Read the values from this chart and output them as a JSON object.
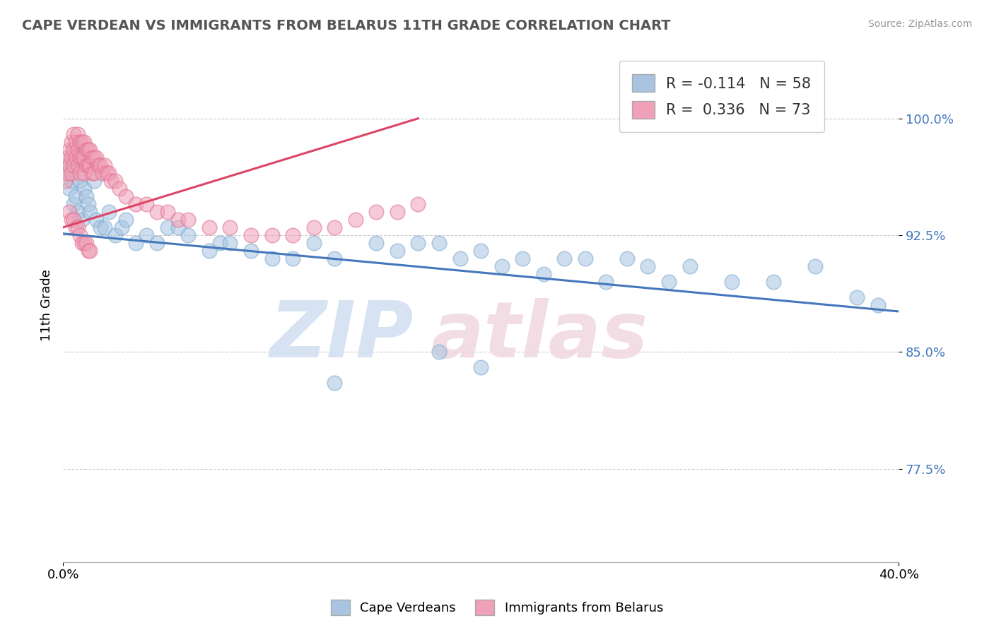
{
  "title": "CAPE VERDEAN VS IMMIGRANTS FROM BELARUS 11TH GRADE CORRELATION CHART",
  "source": "Source: ZipAtlas.com",
  "ylabel": "11th Grade",
  "yticks": [
    0.775,
    0.85,
    0.925,
    1.0
  ],
  "ytick_labels": [
    "77.5%",
    "85.0%",
    "92.5%",
    "100.0%"
  ],
  "xlim": [
    0.0,
    0.4
  ],
  "ylim": [
    0.715,
    1.045
  ],
  "legend_label_cape": "Cape Verdeans",
  "legend_label_belarus": "Immigrants from Belarus",
  "blue_color": "#A8C4E0",
  "pink_color": "#F0A0B8",
  "blue_edge_color": "#7AAACE",
  "pink_edge_color": "#E07090",
  "blue_line_color": "#4477BB",
  "pink_line_color": "#DD4466",
  "blue_scatter_x": [
    0.002,
    0.003,
    0.004,
    0.005,
    0.006,
    0.007,
    0.008,
    0.009,
    0.01,
    0.011,
    0.012,
    0.013,
    0.015,
    0.016,
    0.018,
    0.02,
    0.022,
    0.025,
    0.028,
    0.03,
    0.035,
    0.04,
    0.045,
    0.05,
    0.055,
    0.06,
    0.07,
    0.075,
    0.08,
    0.09,
    0.1,
    0.11,
    0.12,
    0.13,
    0.15,
    0.16,
    0.17,
    0.18,
    0.19,
    0.2,
    0.21,
    0.22,
    0.23,
    0.24,
    0.25,
    0.26,
    0.27,
    0.28,
    0.29,
    0.3,
    0.32,
    0.34,
    0.36,
    0.38,
    0.39,
    0.18,
    0.2,
    0.13
  ],
  "blue_scatter_y": [
    0.97,
    0.955,
    0.96,
    0.945,
    0.95,
    0.94,
    0.96,
    0.935,
    0.955,
    0.95,
    0.945,
    0.94,
    0.96,
    0.935,
    0.93,
    0.93,
    0.94,
    0.925,
    0.93,
    0.935,
    0.92,
    0.925,
    0.92,
    0.93,
    0.93,
    0.925,
    0.915,
    0.92,
    0.92,
    0.915,
    0.91,
    0.91,
    0.92,
    0.91,
    0.92,
    0.915,
    0.92,
    0.92,
    0.91,
    0.915,
    0.905,
    0.91,
    0.9,
    0.91,
    0.91,
    0.895,
    0.91,
    0.905,
    0.895,
    0.905,
    0.895,
    0.895,
    0.905,
    0.885,
    0.88,
    0.85,
    0.84,
    0.83
  ],
  "pink_scatter_x": [
    0.001,
    0.002,
    0.002,
    0.003,
    0.003,
    0.004,
    0.004,
    0.004,
    0.005,
    0.005,
    0.005,
    0.006,
    0.006,
    0.007,
    0.007,
    0.007,
    0.008,
    0.008,
    0.008,
    0.009,
    0.009,
    0.01,
    0.01,
    0.01,
    0.011,
    0.011,
    0.012,
    0.012,
    0.013,
    0.013,
    0.014,
    0.014,
    0.015,
    0.015,
    0.016,
    0.017,
    0.018,
    0.019,
    0.02,
    0.021,
    0.022,
    0.023,
    0.025,
    0.027,
    0.03,
    0.035,
    0.04,
    0.045,
    0.05,
    0.055,
    0.06,
    0.07,
    0.08,
    0.09,
    0.1,
    0.11,
    0.12,
    0.13,
    0.14,
    0.15,
    0.16,
    0.17,
    0.003,
    0.004,
    0.005,
    0.006,
    0.007,
    0.008,
    0.009,
    0.01,
    0.011,
    0.012,
    0.013
  ],
  "pink_scatter_y": [
    0.96,
    0.975,
    0.965,
    0.98,
    0.97,
    0.985,
    0.975,
    0.965,
    0.99,
    0.98,
    0.97,
    0.985,
    0.975,
    0.99,
    0.98,
    0.97,
    0.985,
    0.975,
    0.965,
    0.985,
    0.975,
    0.985,
    0.975,
    0.965,
    0.98,
    0.97,
    0.98,
    0.97,
    0.98,
    0.97,
    0.975,
    0.965,
    0.975,
    0.965,
    0.975,
    0.97,
    0.97,
    0.965,
    0.97,
    0.965,
    0.965,
    0.96,
    0.96,
    0.955,
    0.95,
    0.945,
    0.945,
    0.94,
    0.94,
    0.935,
    0.935,
    0.93,
    0.93,
    0.925,
    0.925,
    0.925,
    0.93,
    0.93,
    0.935,
    0.94,
    0.94,
    0.945,
    0.94,
    0.935,
    0.935,
    0.93,
    0.93,
    0.925,
    0.92,
    0.92,
    0.92,
    0.915,
    0.915
  ],
  "blue_trendline_x": [
    0.0,
    0.4
  ],
  "blue_trendline_y": [
    0.926,
    0.876
  ],
  "pink_trendline_x": [
    0.0,
    0.17
  ],
  "pink_trendline_y": [
    0.93,
    1.0
  ]
}
